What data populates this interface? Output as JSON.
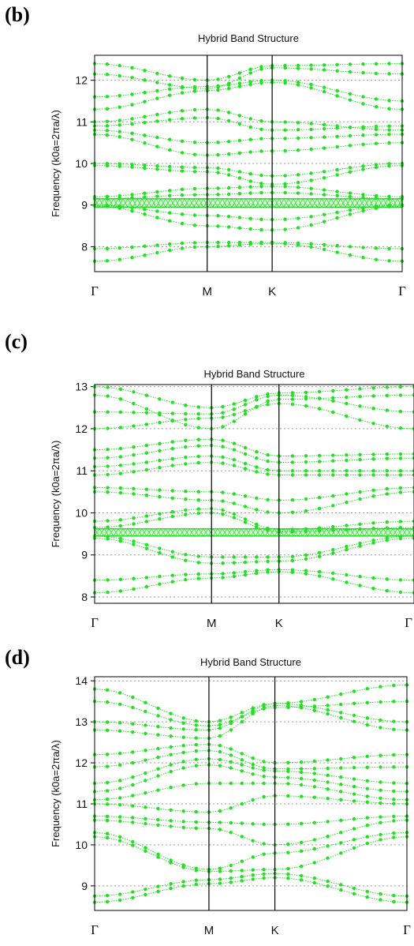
{
  "colors": {
    "band": "#22e022",
    "grid": "#9a9a9a",
    "axis": "#000000"
  },
  "chart_data": [
    {
      "type": "line",
      "panel_label": "(b)",
      "title": "Hybrid Band Structure",
      "ylabel": "Frequency (k0a=2πa/λ)",
      "ylim": [
        7.4,
        12.6
      ],
      "yticks": [
        8,
        9,
        10,
        11,
        12
      ],
      "grid": true,
      "x_points": [
        "Γ",
        "M",
        "K",
        "Γ"
      ],
      "x_positions": [
        0,
        1,
        1.577,
        2.732
      ],
      "band_gap": [
        8.95,
        9.15
      ],
      "bands": [
        [
          7.65,
          8.0,
          8.08,
          7.65
        ],
        [
          7.95,
          8.1,
          8.1,
          7.95
        ],
        [
          8.98,
          8.5,
          8.4,
          8.98
        ],
        [
          9.0,
          8.75,
          8.65,
          9.0
        ],
        [
          9.15,
          9.25,
          9.3,
          9.15
        ],
        [
          9.2,
          9.4,
          9.45,
          9.2
        ],
        [
          9.95,
          9.8,
          9.5,
          9.95
        ],
        [
          10.0,
          9.9,
          9.7,
          10.0
        ],
        [
          10.7,
          10.2,
          10.3,
          10.5
        ],
        [
          10.8,
          10.5,
          10.6,
          10.7
        ],
        [
          10.9,
          11.1,
          10.8,
          10.9
        ],
        [
          11.0,
          11.3,
          11.0,
          10.8
        ],
        [
          11.3,
          11.75,
          11.95,
          11.3
        ],
        [
          11.6,
          11.85,
          12.0,
          11.5
        ],
        [
          12.15,
          11.8,
          12.3,
          12.15
        ],
        [
          12.4,
          12.0,
          12.35,
          12.4
        ]
      ]
    },
    {
      "type": "line",
      "panel_label": "(c)",
      "title": "Hybrid Band Structure",
      "ylabel": "Frequency (k0a=2πa/λ)",
      "ylim": [
        7.85,
        13.05
      ],
      "yticks": [
        8,
        9,
        10,
        11,
        12,
        13
      ],
      "grid": true,
      "x_points": [
        "Γ",
        "M",
        "K",
        "Γ"
      ],
      "x_positions": [
        0,
        1,
        1.577,
        2.732
      ],
      "band_gap": [
        9.45,
        9.62
      ],
      "bands": [
        [
          8.1,
          8.45,
          8.6,
          8.1
        ],
        [
          8.4,
          8.55,
          8.65,
          8.4
        ],
        [
          9.4,
          8.8,
          8.85,
          9.4
        ],
        [
          9.45,
          8.95,
          8.95,
          9.45
        ],
        [
          9.65,
          10.0,
          9.55,
          9.65
        ],
        [
          9.8,
          10.1,
          9.6,
          9.8
        ],
        [
          10.5,
          10.3,
          10.0,
          10.5
        ],
        [
          10.6,
          10.5,
          10.3,
          10.6
        ],
        [
          10.9,
          11.2,
          10.9,
          10.9
        ],
        [
          11.1,
          11.35,
          11.0,
          11.0
        ],
        [
          11.3,
          11.6,
          11.2,
          11.3
        ],
        [
          11.5,
          11.75,
          11.35,
          11.4
        ],
        [
          12.0,
          12.25,
          12.6,
          12.0
        ],
        [
          12.4,
          12.35,
          12.8,
          12.4
        ],
        [
          12.8,
          12.0,
          12.7,
          12.8
        ],
        [
          13.0,
          12.5,
          12.85,
          13.0
        ]
      ]
    },
    {
      "type": "line",
      "panel_label": "(d)",
      "title": "Hybrid Band Structure",
      "ylabel": "Frequency (k0a=2πa/λ)",
      "ylim": [
        8.4,
        14.1
      ],
      "yticks": [
        9,
        10,
        11,
        12,
        13,
        14
      ],
      "grid": true,
      "x_points": [
        "Γ",
        "M",
        "K",
        "Γ"
      ],
      "x_positions": [
        0,
        1,
        1.577,
        2.732
      ],
      "band_gap": [],
      "bands": [
        [
          8.6,
          9.05,
          9.2,
          8.6
        ],
        [
          8.75,
          9.15,
          9.3,
          8.75
        ],
        [
          10.2,
          9.35,
          9.4,
          10.2
        ],
        [
          10.3,
          9.4,
          9.8,
          10.3
        ],
        [
          10.6,
          10.4,
          10.0,
          10.6
        ],
        [
          10.7,
          10.55,
          10.5,
          10.7
        ],
        [
          11.0,
          10.8,
          11.2,
          11.0
        ],
        [
          11.1,
          11.5,
          11.5,
          11.1
        ],
        [
          11.3,
          11.95,
          11.65,
          11.3
        ],
        [
          11.5,
          12.1,
          11.8,
          11.5
        ],
        [
          11.9,
          12.3,
          11.85,
          11.9
        ],
        [
          12.2,
          12.45,
          12.0,
          12.2
        ],
        [
          12.8,
          12.6,
          13.4,
          12.8
        ],
        [
          13.0,
          12.8,
          13.45,
          13.0
        ],
        [
          13.5,
          12.9,
          13.35,
          13.5
        ],
        [
          13.8,
          13.0,
          13.45,
          13.9
        ]
      ]
    }
  ]
}
